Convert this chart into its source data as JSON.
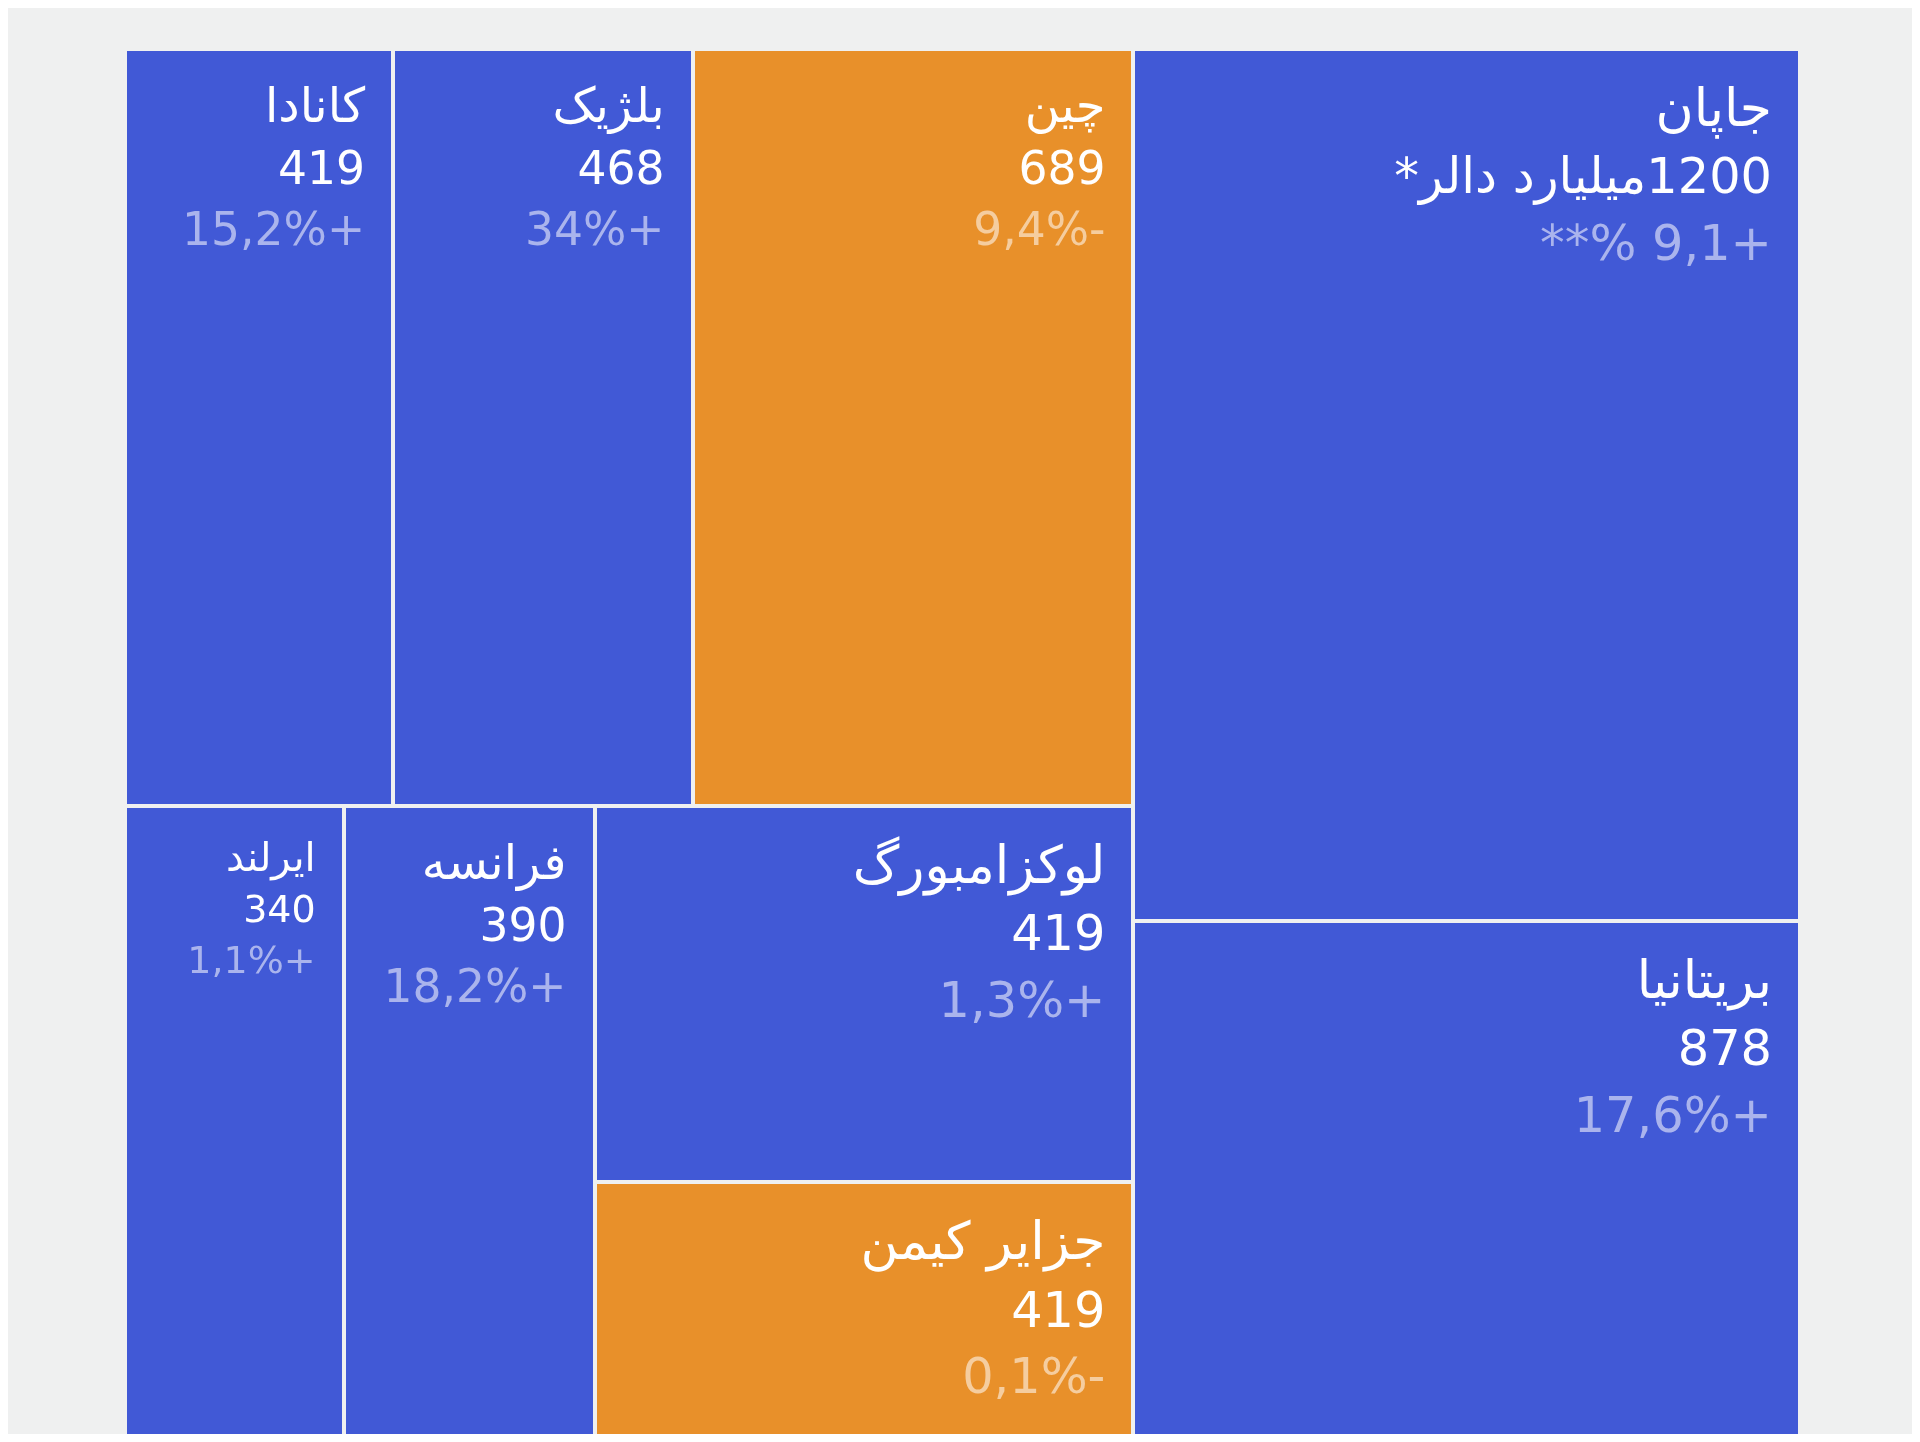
{
  "chart_data": {
    "type": "other",
    "categories": [
      "جاپان",
      "چین",
      "بلژیک",
      "کانادا",
      "بریتانیا",
      "لوکزامبورگ",
      "جزایر کیمن",
      "فرانسه",
      "ایرلند"
    ],
    "values": [
      1200,
      689,
      468,
      419,
      878,
      419,
      419,
      390,
      340
    ],
    "value_labels": [
      "1200میلیارد دالر*",
      "689",
      "468",
      "419",
      "878",
      "419",
      "419",
      "390",
      "340"
    ],
    "colors": [
      "#4159d6",
      "#e8902a",
      "#4159d6",
      "#4159d6",
      "#4159d6",
      "#4159d6",
      "#e8902a",
      "#4159d6",
      "#4159d6"
    ],
    "annotations": [
      {
        "text": "**% 9,1+",
        "x": "جاپان"
      },
      {
        "text": "9,4%-",
        "x": "چین"
      },
      {
        "text": "34%+",
        "x": "بلژیک"
      },
      {
        "text": "15,2%+",
        "x": "کانادا"
      },
      {
        "text": "17,6%+",
        "x": "بریتانیا"
      },
      {
        "text": "1,3%+",
        "x": "لوکزامبورگ"
      },
      {
        "text": "0,1%-",
        "x": "جزایر کیمن"
      },
      {
        "text": "18,2%+",
        "x": "فرانسه"
      },
      {
        "text": "1,1%+",
        "x": "ایرلند"
      }
    ]
  }
}
